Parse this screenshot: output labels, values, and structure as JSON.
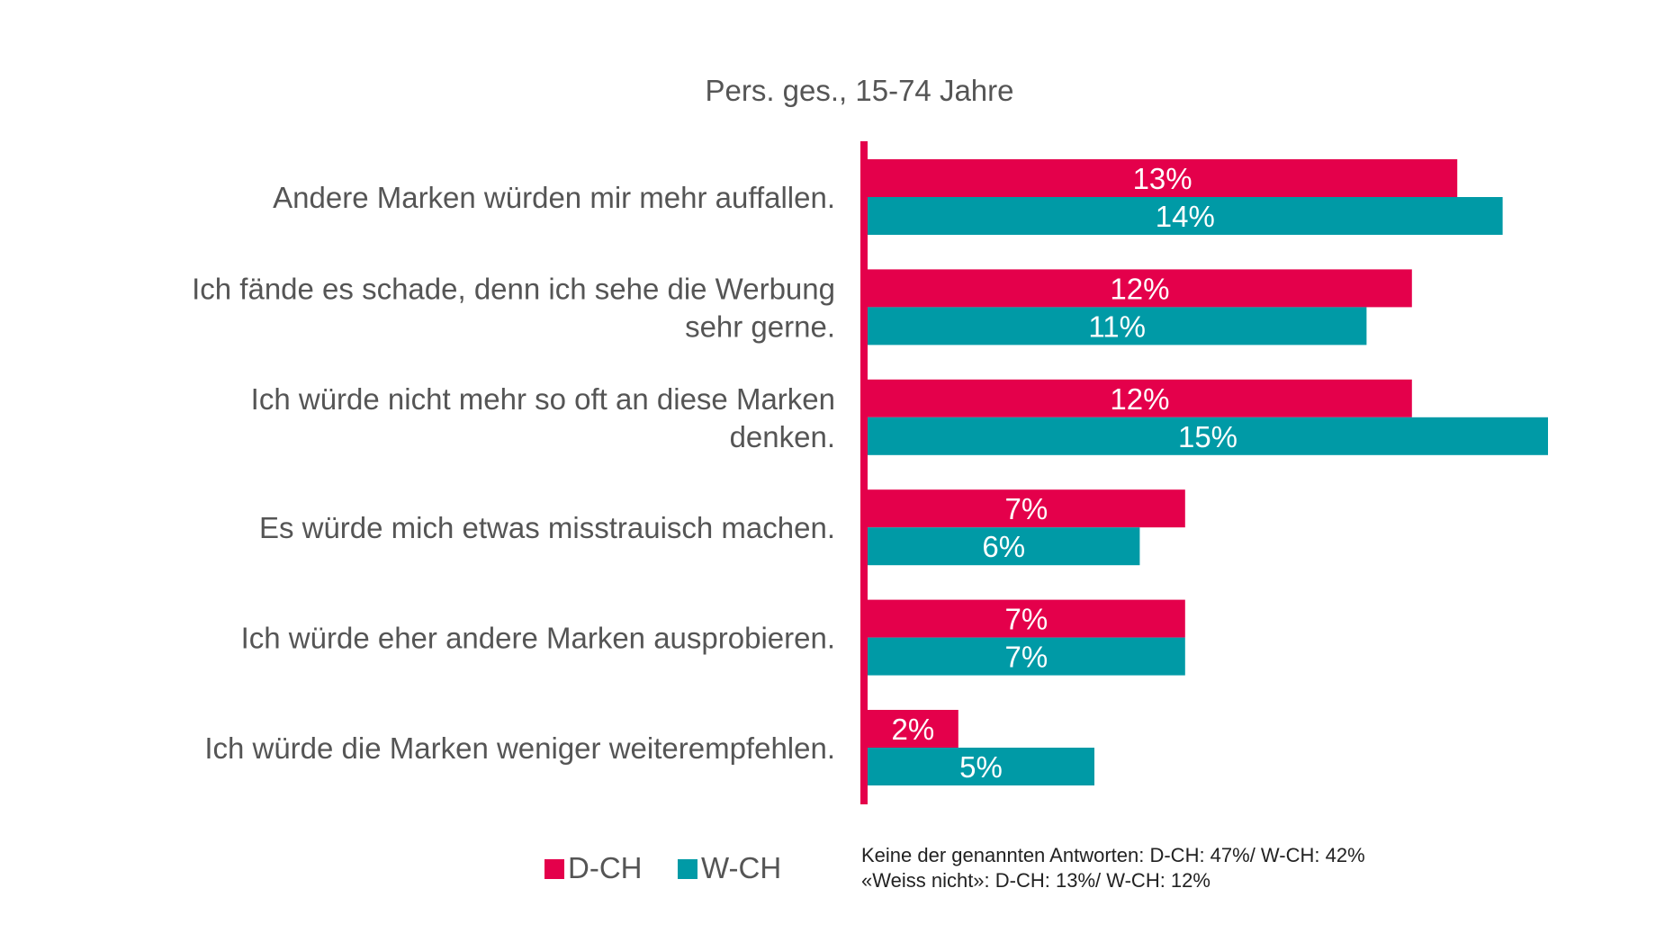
{
  "chart_data": {
    "type": "bar",
    "orientation": "horizontal",
    "subtitle": "Pers. ges., 15-74 Jahre",
    "categories": [
      [
        "Andere Marken würden mir mehr auffallen."
      ],
      [
        "Ich fände es schade, denn ich sehe die Werbung",
        "sehr gerne."
      ],
      [
        "Ich würde nicht mehr so oft an diese Marken",
        "denken."
      ],
      [
        "Es würde mich etwas misstrauisch machen."
      ],
      [
        "Ich würde eher andere Marken ausprobieren."
      ],
      [
        "Ich würde die Marken weniger weiterempfehlen."
      ]
    ],
    "series": [
      {
        "name": "D-CH",
        "color": "#e4004b",
        "values": [
          13,
          12,
          12,
          7,
          7,
          2
        ],
        "labels": [
          "13%",
          "12%",
          "12%",
          "7%",
          "7%",
          "2%"
        ]
      },
      {
        "name": "W-CH",
        "color": "#009aa6",
        "values": [
          14,
          11,
          15,
          6,
          7,
          5
        ],
        "labels": [
          "14%",
          "11%",
          "15%",
          "6%",
          "7%",
          "5%"
        ]
      }
    ],
    "axis_color": "#e4004b",
    "xlim": [
      0,
      15
    ],
    "grid": false,
    "legend_position": "bottom-left",
    "notes": [
      "Keine der genannten Antworten: D-CH: 47%/ W-CH: 42%",
      "«Weiss nicht»: D-CH: 13%/ W-CH: 12%"
    ]
  }
}
